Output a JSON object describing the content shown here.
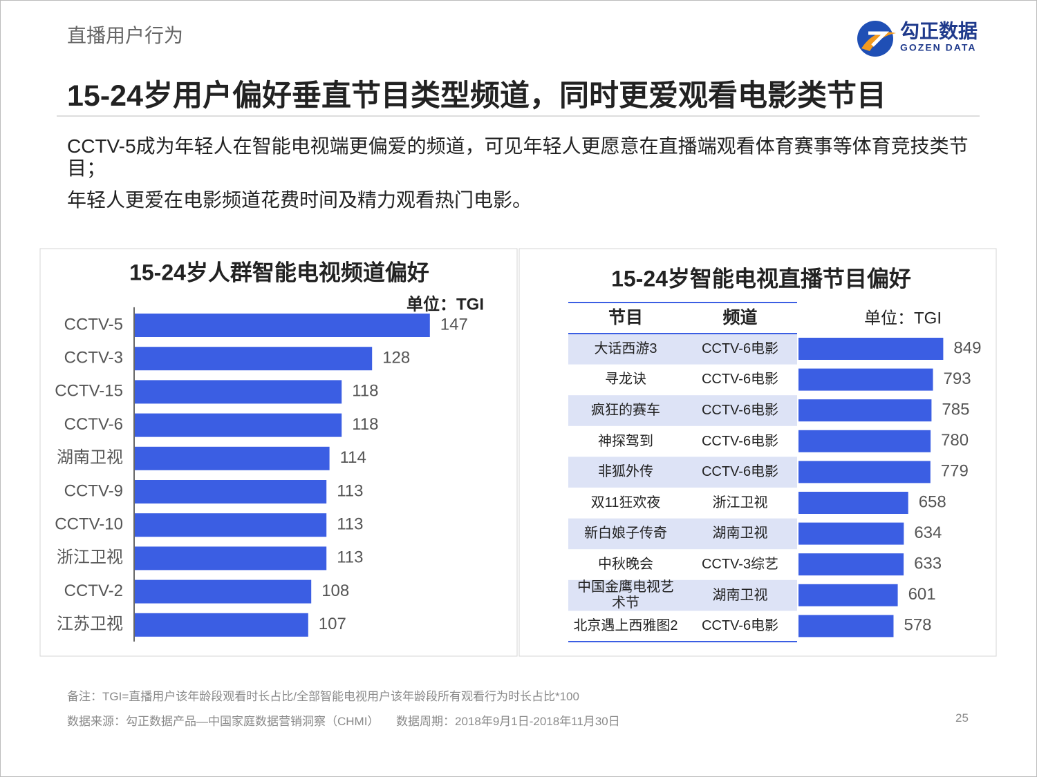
{
  "header": {
    "section": "直播用户行为",
    "title": "15-24岁用户偏好垂直节目类型频道，同时更爱观看电影类节目",
    "logo": {
      "name": "勾正数据",
      "name_en": "GOZEN DATA"
    }
  },
  "body": {
    "paragraphs": [
      "CCTV-5成为年轻人在智能电视端更偏爱的频道，可见年轻人更愿意在直播端观看体育赛事等体育竞技类节目；",
      "年轻人更爱在电影频道花费时间及精力观看热门电影。"
    ]
  },
  "chart_data": [
    {
      "type": "bar",
      "orientation": "horizontal",
      "title": "15-24岁人群智能电视频道偏好",
      "unit": "单位：TGI",
      "categories": [
        "CCTV-5",
        "CCTV-3",
        "CCTV-15",
        "CCTV-6",
        "湖南卫视",
        "CCTV-9",
        "CCTV-10",
        "浙江卫视",
        "CCTV-2",
        "江苏卫视"
      ],
      "values": [
        147,
        128,
        118,
        118,
        114,
        113,
        113,
        113,
        108,
        107
      ],
      "color": "#3b5ee3",
      "xlim": [
        50,
        165
      ]
    },
    {
      "type": "bar",
      "orientation": "horizontal",
      "title": "15-24岁智能电视直播节目偏好",
      "unit": "单位：TGI",
      "columns": [
        "节目",
        "频道"
      ],
      "categories": [
        "大话西游3",
        "寻龙诀",
        "疯狂的赛车",
        "神探驾到",
        "非狐外传",
        "双11狂欢夜",
        "新白娘子传奇",
        "中秋晚会",
        "中国金鹰电视艺术节",
        "北京遇上西雅图2"
      ],
      "channels": [
        "CCTV-6电影",
        "CCTV-6电影",
        "CCTV-6电影",
        "CCTV-6电影",
        "CCTV-6电影",
        "浙江卫视",
        "湖南卫视",
        "CCTV-3综艺",
        "湖南卫视",
        "CCTV-6电影"
      ],
      "values": [
        849,
        793,
        785,
        780,
        779,
        658,
        634,
        633,
        601,
        578
      ],
      "color": "#3b5ee3",
      "xlim": [
        60,
        1100
      ]
    }
  ],
  "footer": {
    "note": "备注：TGI=直播用户该年龄段观看时长占比/全部智能电视用户该年龄段所有观看行为时长占比*100",
    "source": "数据来源：勾正数据产品—中国家庭数据营销洞察（CHMI）",
    "period": "数据周期：2018年9月1日-2018年11月30日",
    "page": "25"
  }
}
